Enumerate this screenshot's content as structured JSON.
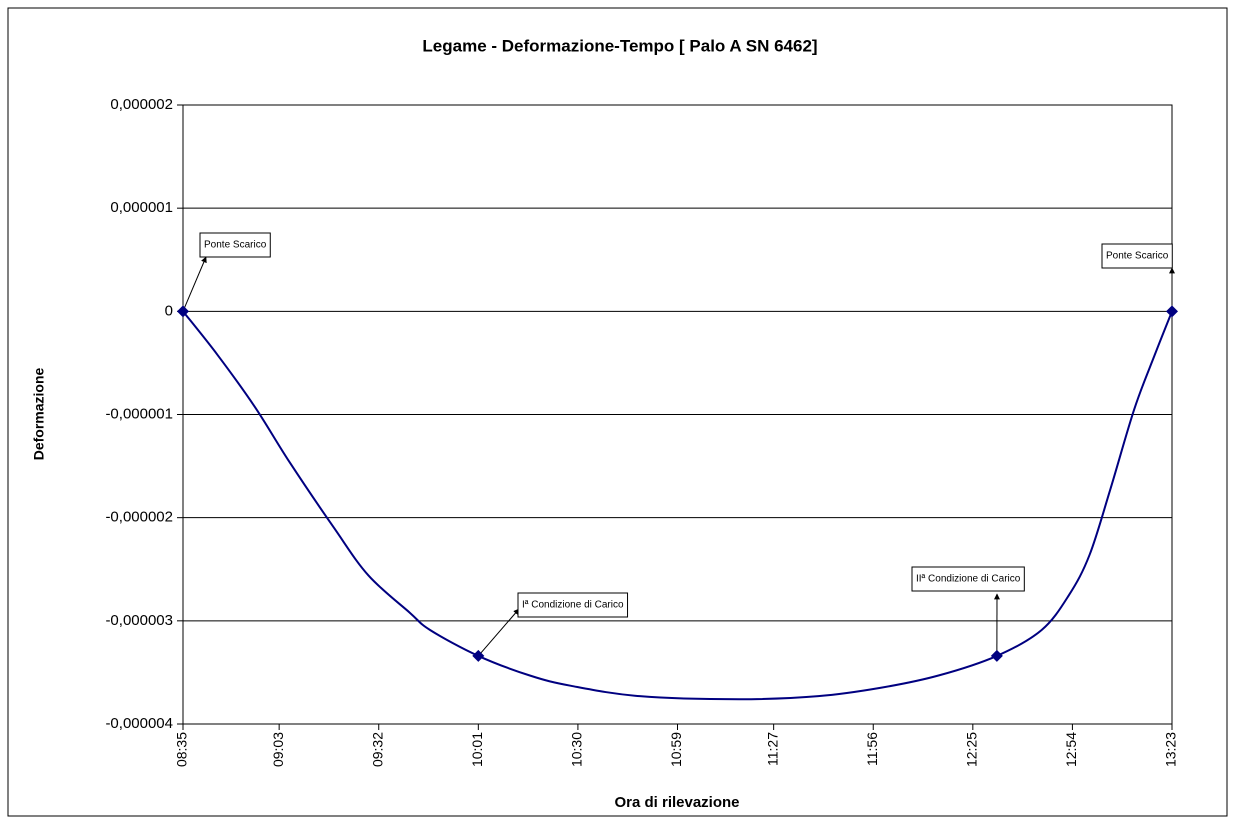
{
  "chart_data": {
    "type": "line",
    "title": "Legame - Deformazione-Tempo [ Palo A SN 6462]",
    "x_label": "Ora di rilevazione",
    "y_label": "Deformazione",
    "x": [
      "08:35",
      "08:45",
      "08:56",
      "09:06",
      "09:19",
      "09:29",
      "09:41",
      "09:47",
      "10:01",
      "10:16",
      "10:28",
      "10:48",
      "11:17",
      "11:40",
      "11:58",
      "12:15",
      "12:32",
      "12:45",
      "12:53",
      "12:59",
      "13:05",
      "13:12",
      "13:18",
      "13:23"
    ],
    "series": [
      {
        "name": "Deformazione",
        "color": "#000080",
        "values": [
          0,
          -4.2e-07,
          -9.3e-07,
          -1.46e-06,
          -2.1e-06,
          -2.56e-06,
          -2.92e-06,
          -3.09e-06,
          -3.34e-06,
          -3.53e-06,
          -3.63e-06,
          -3.73e-06,
          -3.76e-06,
          -3.73e-06,
          -3.65e-06,
          -3.53e-06,
          -3.34e-06,
          -3.09e-06,
          -2.75e-06,
          -2.36e-06,
          -1.73e-06,
          -9.5e-07,
          -4.2e-07,
          0
        ]
      }
    ],
    "annotations": [
      {
        "text": "Ponte Scarico",
        "x": "08:35",
        "y": 0
      },
      {
        "text": "Iª Condizione di Carico",
        "x": "10:01",
        "y": -3.34e-06
      },
      {
        "text": "IIª Condizione di Carico",
        "x": "12:32",
        "y": -3.34e-06
      },
      {
        "text": "Ponte Scarico",
        "x": "13:23",
        "y": 0
      }
    ],
    "xlim": [
      "08:35",
      "13:23"
    ],
    "xticks": [
      "08:35",
      "09:03",
      "09:32",
      "10:01",
      "10:30",
      "10:59",
      "11:27",
      "11:56",
      "12:25",
      "12:54",
      "13:23"
    ],
    "ylim": [
      -4e-06,
      2e-06
    ],
    "yticks": [
      {
        "value": -4e-06,
        "label": "-0,000004"
      },
      {
        "value": -3e-06,
        "label": "-0,000003"
      },
      {
        "value": -2e-06,
        "label": "-0,000002"
      },
      {
        "value": -1e-06,
        "label": "-0,000001"
      },
      0,
      {
        "value": 1e-06,
        "label": "0,000001"
      },
      {
        "value": 2e-06,
        "label": "0,000002"
      }
    ],
    "grid": true
  }
}
